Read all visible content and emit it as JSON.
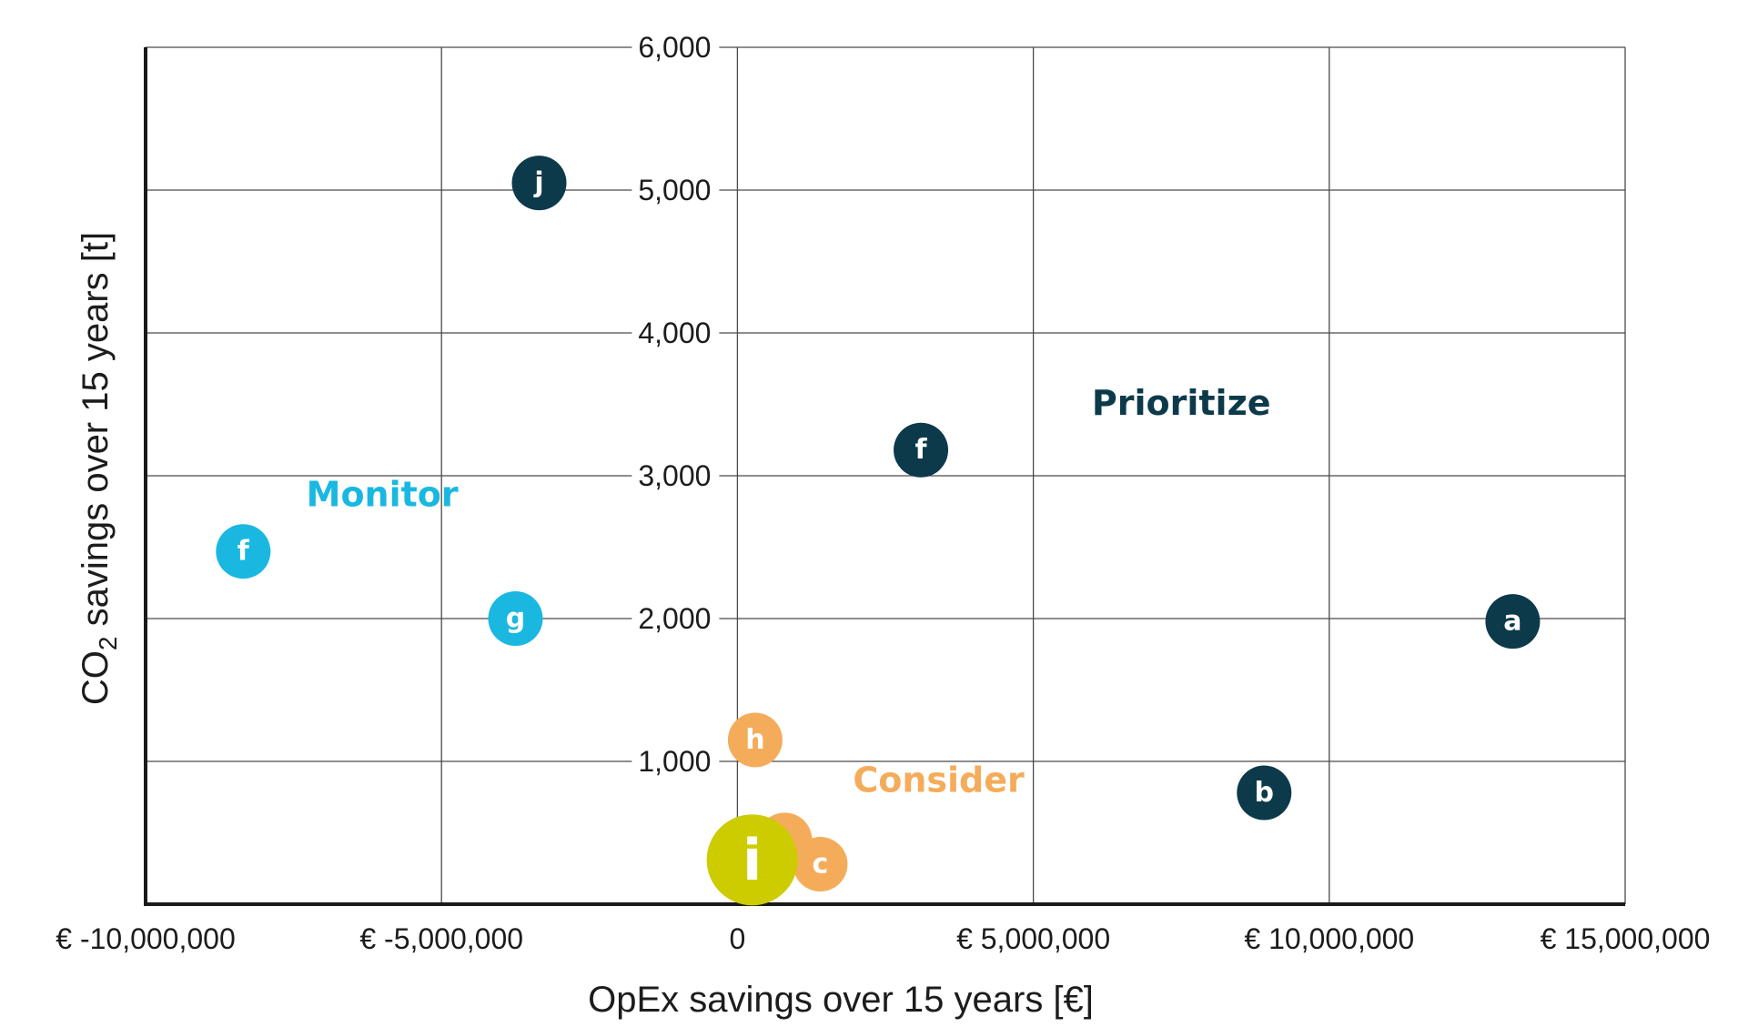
{
  "chart_data": {
    "type": "scatter",
    "xlabel": "OpEx savings over 15 years [€]",
    "ylabel_main": "CO",
    "ylabel_sub": "2",
    "ylabel_rest": " savings over 15 years [t]",
    "xlim": [
      -10000000,
      15000000
    ],
    "ylim": [
      0,
      6000
    ],
    "x_ticks": [
      {
        "value": -10000000,
        "label": "€ -10,000,000"
      },
      {
        "value": -5000000,
        "label": "€ -5,000,000"
      },
      {
        "value": 0,
        "label": "0"
      },
      {
        "value": 5000000,
        "label": "€ 5,000,000"
      },
      {
        "value": 10000000,
        "label": "€ 10,000,000"
      },
      {
        "value": 15000000,
        "label": "€ 15,000,000"
      }
    ],
    "y_ticks": [
      {
        "value": 1000,
        "label": "1,000"
      },
      {
        "value": 2000,
        "label": "2,000"
      },
      {
        "value": 3000,
        "label": "3,000"
      },
      {
        "value": 4000,
        "label": "4,000"
      },
      {
        "value": 5000,
        "label": "5,000"
      },
      {
        "value": 6000,
        "label": "6,000"
      }
    ],
    "grid": true,
    "colors": {
      "prioritize": "#0d3a4a",
      "monitor": "#1ab8e0",
      "consider": "#f5ac5a",
      "highlight": "#cccc00"
    },
    "regions": [
      {
        "label": "Prioritize",
        "category": "prioritize",
        "x": 7500000,
        "y": 3500000
      },
      {
        "label": "Monitor",
        "category": "monitor",
        "x": -6000000,
        "y": 2870
      },
      {
        "label": "Consider",
        "category": "consider",
        "x": 3400000,
        "y": 870
      }
    ],
    "points": [
      {
        "label": "",
        "x": 800000,
        "y": 450,
        "category": "consider",
        "size": "normal"
      },
      {
        "label": "j",
        "x": -3350000,
        "y": 5050,
        "category": "prioritize",
        "size": "normal"
      },
      {
        "label": "f",
        "x": 3100000,
        "y": 3180,
        "category": "prioritize",
        "size": "normal"
      },
      {
        "label": "a",
        "x": 13100000,
        "y": 1980,
        "category": "prioritize",
        "size": "normal"
      },
      {
        "label": "b",
        "x": 8900000,
        "y": 780,
        "category": "prioritize",
        "size": "normal"
      },
      {
        "label": "f",
        "x": -8350000,
        "y": 2470,
        "category": "monitor",
        "size": "normal"
      },
      {
        "label": "g",
        "x": -3750000,
        "y": 2000,
        "category": "monitor",
        "size": "normal"
      },
      {
        "label": "h",
        "x": 300000,
        "y": 1150,
        "category": "consider",
        "size": "normal"
      },
      {
        "label": "c",
        "x": 1400000,
        "y": 280,
        "category": "consider",
        "size": "normal"
      },
      {
        "label": "i",
        "x": 250000,
        "y": 310,
        "category": "highlight",
        "size": "large"
      }
    ]
  }
}
